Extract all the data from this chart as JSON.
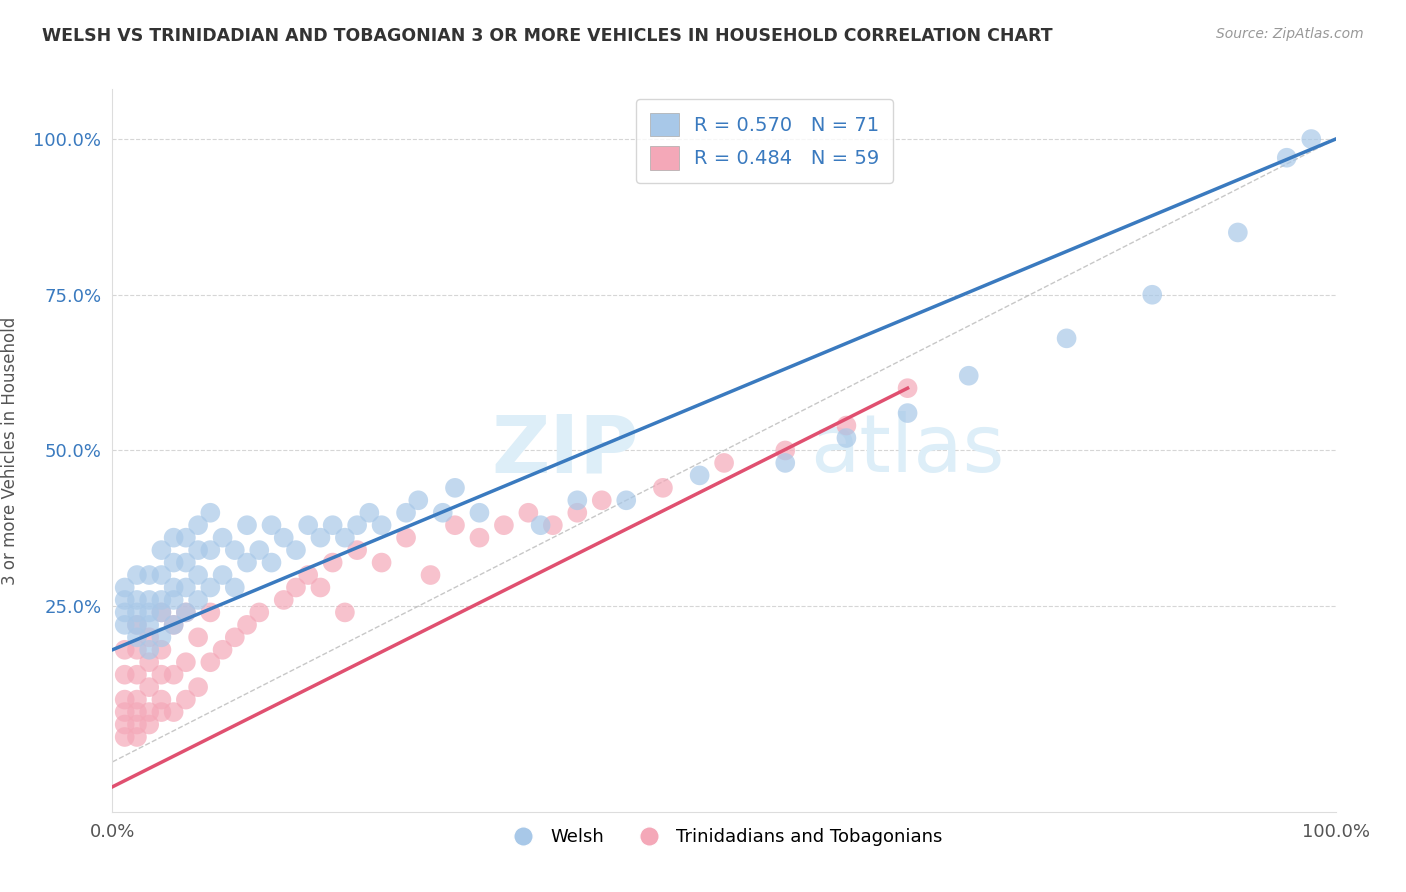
{
  "title": "WELSH VS TRINIDADIAN AND TOBAGONIAN 3 OR MORE VEHICLES IN HOUSEHOLD CORRELATION CHART",
  "source": "Source: ZipAtlas.com",
  "ylabel": "3 or more Vehicles in Household",
  "xlim": [
    0.0,
    1.0
  ],
  "ylim": [
    -0.08,
    1.08
  ],
  "welsh_R": 0.57,
  "welsh_N": 71,
  "trini_R": 0.484,
  "trini_N": 59,
  "welsh_color": "#a8c8e8",
  "trini_color": "#f4a8b8",
  "welsh_line_color": "#3a7abf",
  "trini_line_color": "#e05070",
  "diagonal_color": "#b0b0b0",
  "background_color": "#ffffff",
  "grid_color": "#cccccc",
  "title_color": "#333333",
  "legend_text_color": "#3a7abf",
  "watermark_color": "#ddeef8",
  "welsh_line_x0": 0.0,
  "welsh_line_y0": 0.18,
  "welsh_line_x1": 1.0,
  "welsh_line_y1": 1.0,
  "trini_line_x0": 0.0,
  "trini_line_y0": -0.04,
  "trini_line_x1": 0.65,
  "trini_line_y1": 0.6,
  "welsh_scatter_x": [
    0.01,
    0.01,
    0.01,
    0.01,
    0.02,
    0.02,
    0.02,
    0.02,
    0.02,
    0.03,
    0.03,
    0.03,
    0.03,
    0.03,
    0.04,
    0.04,
    0.04,
    0.04,
    0.04,
    0.05,
    0.05,
    0.05,
    0.05,
    0.05,
    0.06,
    0.06,
    0.06,
    0.06,
    0.07,
    0.07,
    0.07,
    0.07,
    0.08,
    0.08,
    0.08,
    0.09,
    0.09,
    0.1,
    0.1,
    0.11,
    0.11,
    0.12,
    0.13,
    0.13,
    0.14,
    0.15,
    0.16,
    0.17,
    0.18,
    0.19,
    0.2,
    0.21,
    0.22,
    0.24,
    0.25,
    0.27,
    0.28,
    0.3,
    0.35,
    0.38,
    0.42,
    0.48,
    0.55,
    0.6,
    0.65,
    0.7,
    0.78,
    0.85,
    0.92,
    0.96,
    0.98
  ],
  "welsh_scatter_y": [
    0.22,
    0.24,
    0.26,
    0.28,
    0.2,
    0.22,
    0.24,
    0.26,
    0.3,
    0.18,
    0.22,
    0.24,
    0.26,
    0.3,
    0.2,
    0.24,
    0.26,
    0.3,
    0.34,
    0.22,
    0.26,
    0.28,
    0.32,
    0.36,
    0.24,
    0.28,
    0.32,
    0.36,
    0.26,
    0.3,
    0.34,
    0.38,
    0.28,
    0.34,
    0.4,
    0.3,
    0.36,
    0.28,
    0.34,
    0.32,
    0.38,
    0.34,
    0.32,
    0.38,
    0.36,
    0.34,
    0.38,
    0.36,
    0.38,
    0.36,
    0.38,
    0.4,
    0.38,
    0.4,
    0.42,
    0.4,
    0.44,
    0.4,
    0.38,
    0.42,
    0.42,
    0.46,
    0.48,
    0.52,
    0.56,
    0.62,
    0.68,
    0.75,
    0.85,
    0.97,
    1.0
  ],
  "trini_scatter_x": [
    0.01,
    0.01,
    0.01,
    0.01,
    0.01,
    0.01,
    0.02,
    0.02,
    0.02,
    0.02,
    0.02,
    0.02,
    0.02,
    0.03,
    0.03,
    0.03,
    0.03,
    0.03,
    0.04,
    0.04,
    0.04,
    0.04,
    0.04,
    0.05,
    0.05,
    0.05,
    0.06,
    0.06,
    0.06,
    0.07,
    0.07,
    0.08,
    0.08,
    0.09,
    0.1,
    0.11,
    0.12,
    0.14,
    0.15,
    0.16,
    0.17,
    0.18,
    0.19,
    0.2,
    0.22,
    0.24,
    0.26,
    0.28,
    0.3,
    0.32,
    0.34,
    0.36,
    0.38,
    0.4,
    0.45,
    0.5,
    0.55,
    0.6,
    0.65
  ],
  "trini_scatter_y": [
    0.04,
    0.06,
    0.08,
    0.1,
    0.14,
    0.18,
    0.04,
    0.06,
    0.08,
    0.1,
    0.14,
    0.18,
    0.22,
    0.06,
    0.08,
    0.12,
    0.16,
    0.2,
    0.08,
    0.1,
    0.14,
    0.18,
    0.24,
    0.08,
    0.14,
    0.22,
    0.1,
    0.16,
    0.24,
    0.12,
    0.2,
    0.16,
    0.24,
    0.18,
    0.2,
    0.22,
    0.24,
    0.26,
    0.28,
    0.3,
    0.28,
    0.32,
    0.24,
    0.34,
    0.32,
    0.36,
    0.3,
    0.38,
    0.36,
    0.38,
    0.4,
    0.38,
    0.4,
    0.42,
    0.44,
    0.48,
    0.5,
    0.54,
    0.6
  ]
}
